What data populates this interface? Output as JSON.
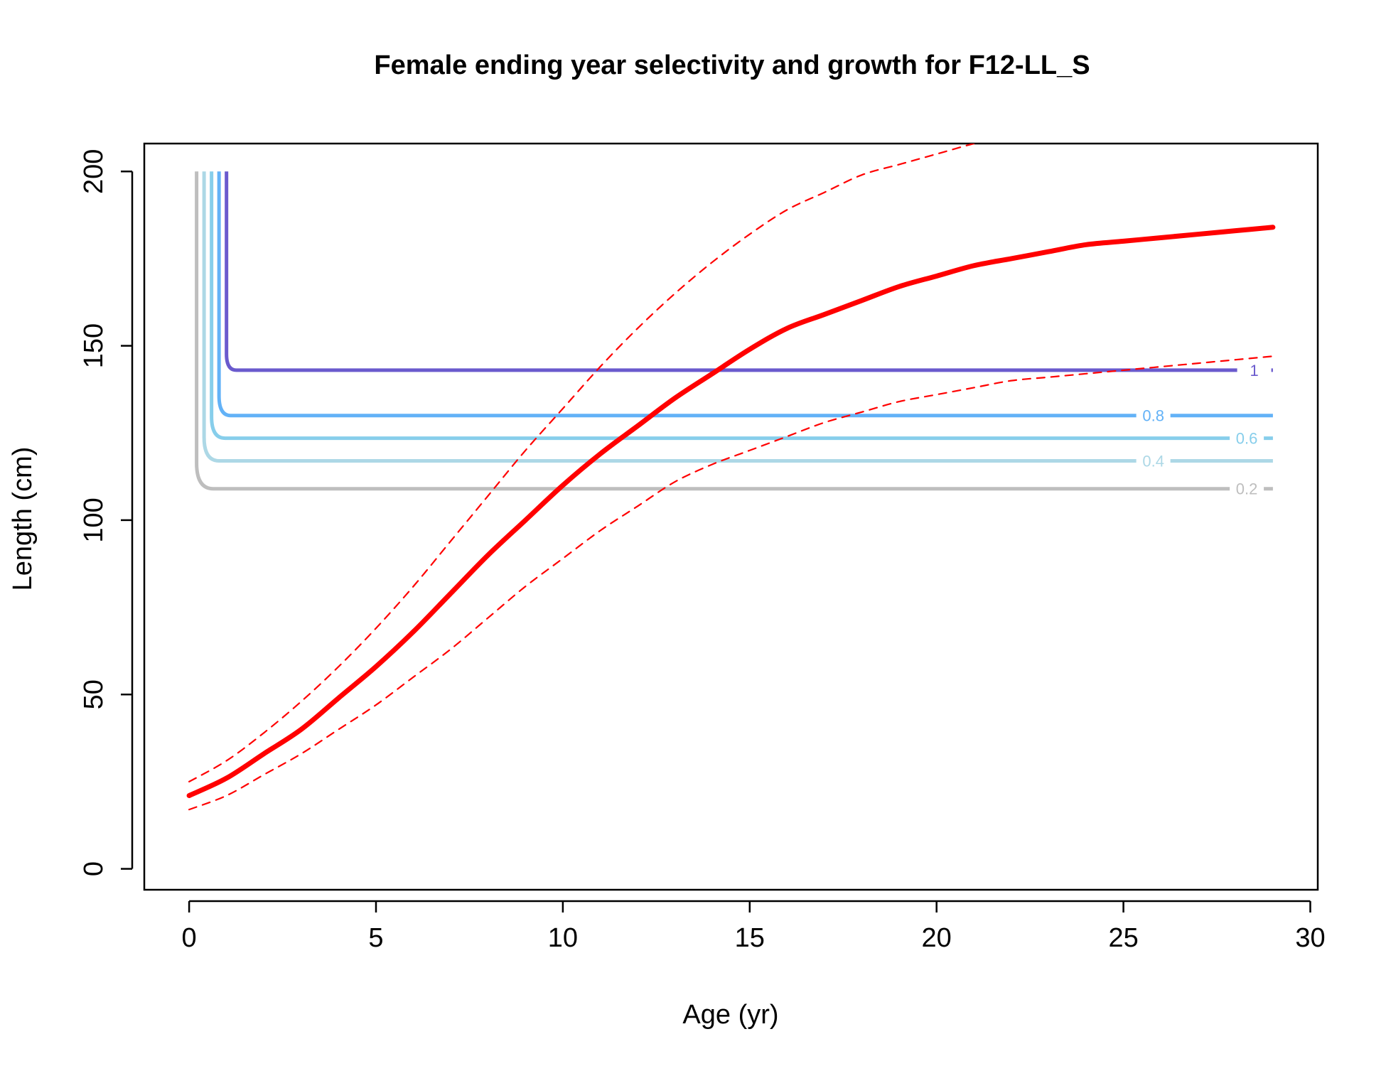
{
  "chart_data": {
    "type": "line",
    "title": "Female ending year selectivity and growth for F12-LL_S",
    "xlabel": "Age (yr)",
    "ylabel": "Length (cm)",
    "xlim": [
      -1.2,
      30.2
    ],
    "ylim": [
      -6,
      208
    ],
    "x_ticks": [
      0,
      5,
      10,
      15,
      20,
      25,
      30
    ],
    "y_ticks": [
      0,
      50,
      100,
      150,
      200
    ],
    "grid": false,
    "legend": "none",
    "colors": {
      "growth": "#ff0000",
      "ci": "#ff0000",
      "contour_0_2": "#bebebe",
      "contour_0_4": "#add8e6",
      "contour_0_6": "#87ceeb",
      "contour_0_8": "#63b2f7",
      "contour_1": "#6a5acd"
    },
    "series": [
      {
        "kind": "growth",
        "style": "solid-thick",
        "color": "#ff0000",
        "x": [
          0,
          1,
          2,
          3,
          4,
          5,
          6,
          7,
          8,
          9,
          10,
          11,
          12,
          13,
          14,
          15,
          16,
          17,
          18,
          19,
          20,
          21,
          22,
          23,
          24,
          25,
          26,
          27,
          28,
          29
        ],
        "y": [
          21,
          26,
          33,
          40,
          49,
          58,
          68,
          79,
          90,
          100,
          110,
          119,
          127,
          135,
          142,
          149,
          155,
          159,
          163,
          167,
          170,
          173,
          175,
          177,
          179,
          180,
          181,
          182,
          183,
          184
        ]
      },
      {
        "kind": "ci-upper",
        "style": "dashed",
        "color": "#ff0000",
        "x": [
          0,
          1,
          2,
          3,
          4,
          5,
          6,
          7,
          8,
          9,
          10,
          11,
          12,
          13,
          14,
          15,
          16,
          17,
          18,
          19,
          20,
          21,
          21.8
        ],
        "y": [
          25,
          31,
          39,
          48,
          58,
          69,
          81,
          94,
          107,
          120,
          132,
          144,
          155,
          165,
          174,
          182,
          189,
          194,
          199,
          202,
          205,
          208,
          210
        ]
      },
      {
        "kind": "ci-lower",
        "style": "dashed",
        "color": "#ff0000",
        "x": [
          0,
          1,
          2,
          3,
          4,
          5,
          6,
          7,
          8,
          9,
          10,
          11,
          12,
          13,
          14,
          15,
          16,
          17,
          18,
          19,
          20,
          21,
          22,
          23,
          24,
          25,
          26,
          27,
          28,
          29
        ],
        "y": [
          17,
          21,
          27,
          33,
          40,
          47,
          55,
          63,
          72,
          81,
          89,
          97,
          104,
          111,
          116,
          120,
          124,
          128,
          131,
          134,
          136,
          138,
          140,
          141,
          142,
          143,
          144,
          145,
          146,
          147
        ]
      }
    ],
    "contours": [
      {
        "level": "0.2",
        "x_vertical": 0.2,
        "y_bottom": 109,
        "y_top": 200,
        "label_x": 28.3,
        "label_y": 109,
        "color": "#bebebe"
      },
      {
        "level": "0.4",
        "x_vertical": 0.4,
        "y_bottom": 117,
        "y_top": 200,
        "label_x": 25.8,
        "label_y": 117,
        "color": "#add8e6"
      },
      {
        "level": "0.6",
        "x_vertical": 0.6,
        "y_bottom": 123.5,
        "y_top": 200,
        "label_x": 28.3,
        "label_y": 123.5,
        "color": "#87ceeb"
      },
      {
        "level": "0.8",
        "x_vertical": 0.8,
        "y_bottom": 130,
        "y_top": 200,
        "label_x": 25.8,
        "label_y": 130,
        "color": "#63b2f7"
      },
      {
        "level": "1",
        "x_vertical": 1.0,
        "y_bottom": 143,
        "y_top": 200,
        "label_x": 28.5,
        "label_y": 143,
        "color": "#6a5acd"
      }
    ]
  }
}
